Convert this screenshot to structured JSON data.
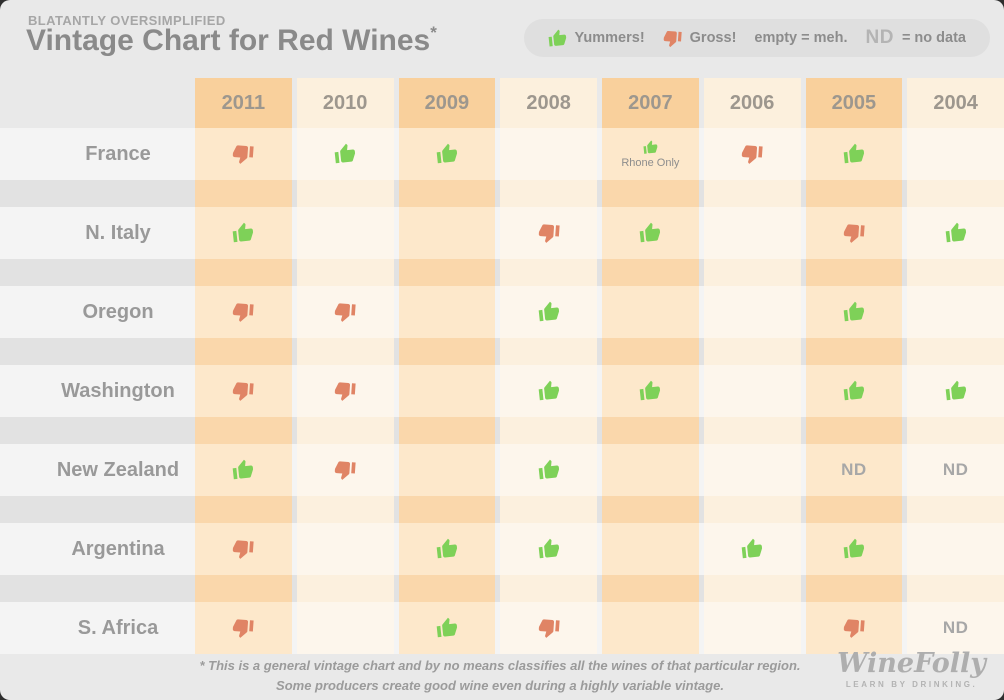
{
  "page": {
    "eyebrow": "BLATANTLY OVERSIMPLIFIED",
    "title": "Vintage Chart for Red Wines",
    "title_asterisk": "*",
    "footnote_line1": "* This is a general vintage chart and by no means classifies all the wines of that particular region.",
    "footnote_line2": "Some producers create good wine even during a highly variable vintage.",
    "logo_text": "WineFolly",
    "logo_tagline": "LEARN BY DRINKING."
  },
  "legend": {
    "yummers_label": "Yummers!",
    "gross_label": "Gross!",
    "empty_label": "empty = meh.",
    "nd_abbr": "ND",
    "nd_label": "= no data"
  },
  "colors": {
    "thumb_up_green": "#7ed158",
    "thumb_down_red": "#e08465",
    "header_odd_orange": "#f9d09c",
    "header_even_cream": "#fcf0dd",
    "cell_odd_orange": "#fde8cb",
    "cell_even_cream": "#fdf6ec",
    "separator_odd_orange": "#fad7ab",
    "separator_even_cream": "#fcf0de",
    "page_background": "#e9e9e9",
    "legend_pill": "#dfdfdf",
    "text_gray": "#8a8a8a"
  },
  "chart_data": {
    "type": "table",
    "title": "Vintage Chart for Red Wines",
    "value_legend": {
      "up": "Yummers!",
      "down": "Gross!",
      "empty": "meh.",
      "ND": "no data"
    },
    "columns": [
      "2011",
      "2010",
      "2009",
      "2008",
      "2007",
      "2006",
      "2005",
      "2004"
    ],
    "rows": [
      {
        "region": "France",
        "ratings": [
          "down",
          "up",
          "up",
          "",
          "up",
          "down",
          "up",
          ""
        ],
        "note": {
          "column": "2007",
          "text": "Rhone Only"
        }
      },
      {
        "region": "N. Italy",
        "ratings": [
          "up",
          "",
          "",
          "down",
          "up",
          "",
          "down",
          "up"
        ]
      },
      {
        "region": "Oregon",
        "ratings": [
          "down",
          "down",
          "",
          "up",
          "",
          "",
          "up",
          ""
        ]
      },
      {
        "region": "Washington",
        "ratings": [
          "down",
          "down",
          "",
          "up",
          "up",
          "",
          "up",
          "up"
        ]
      },
      {
        "region": "New Zealand",
        "ratings": [
          "up",
          "down",
          "",
          "up",
          "",
          "",
          "ND",
          "ND"
        ]
      },
      {
        "region": "Argentina",
        "ratings": [
          "down",
          "",
          "up",
          "up",
          "",
          "up",
          "up",
          ""
        ]
      },
      {
        "region": "S. Africa",
        "ratings": [
          "down",
          "",
          "up",
          "down",
          "",
          "",
          "down",
          "ND"
        ]
      }
    ]
  }
}
